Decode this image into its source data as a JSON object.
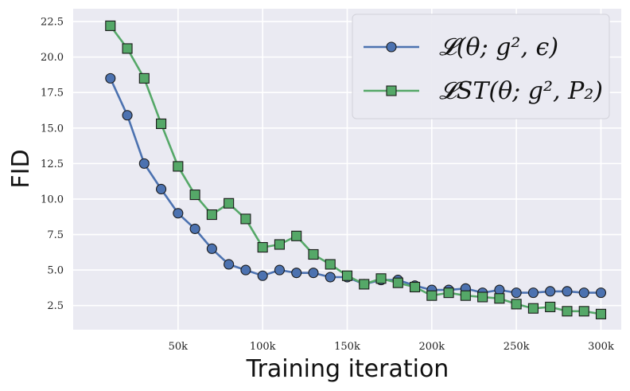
{
  "chart_data": {
    "type": "line",
    "title": "",
    "xlabel": "Training iteration",
    "ylabel": "FID",
    "xlim": [
      -12000,
      312000
    ],
    "ylim": [
      0.8,
      23.4
    ],
    "x_ticks": [
      50000,
      100000,
      150000,
      200000,
      250000,
      300000
    ],
    "x_tick_labels": [
      "50k",
      "100k",
      "150k",
      "200k",
      "250k",
      "300k"
    ],
    "y_ticks": [
      2.5,
      5.0,
      7.5,
      10.0,
      12.5,
      15.0,
      17.5,
      20.0,
      22.5
    ],
    "y_tick_labels": [
      "2.5",
      "5.0",
      "7.5",
      "10.0",
      "12.5",
      "15.0",
      "17.5",
      "20.0",
      "22.5"
    ],
    "grid": true,
    "legend_position": "top-right",
    "x": [
      10000,
      20000,
      30000,
      40000,
      50000,
      60000,
      70000,
      80000,
      90000,
      100000,
      110000,
      120000,
      130000,
      140000,
      150000,
      160000,
      170000,
      180000,
      190000,
      200000,
      210000,
      220000,
      230000,
      240000,
      250000,
      260000,
      270000,
      280000,
      290000,
      300000
    ],
    "series": [
      {
        "name": "𝓛(θ; g², ϵ)",
        "color": "#4c72b0",
        "marker": "circle",
        "values": [
          18.5,
          15.9,
          12.5,
          10.7,
          9.0,
          7.9,
          6.5,
          5.4,
          5.0,
          4.6,
          5.0,
          4.8,
          4.8,
          4.5,
          4.5,
          4.0,
          4.3,
          4.3,
          3.9,
          3.6,
          3.6,
          3.7,
          3.4,
          3.6,
          3.4,
          3.4,
          3.5,
          3.5,
          3.4,
          3.4
        ]
      },
      {
        "name": "𝓛ST(θ; g², P₂)",
        "color": "#55a868",
        "marker": "square",
        "values": [
          22.2,
          20.6,
          18.5,
          15.3,
          12.3,
          10.3,
          8.9,
          9.7,
          8.6,
          6.6,
          6.8,
          7.4,
          6.1,
          5.4,
          4.6,
          4.0,
          4.4,
          4.1,
          3.8,
          3.2,
          3.4,
          3.2,
          3.1,
          3.0,
          2.6,
          2.3,
          2.4,
          2.1,
          2.1,
          1.9
        ]
      }
    ]
  }
}
